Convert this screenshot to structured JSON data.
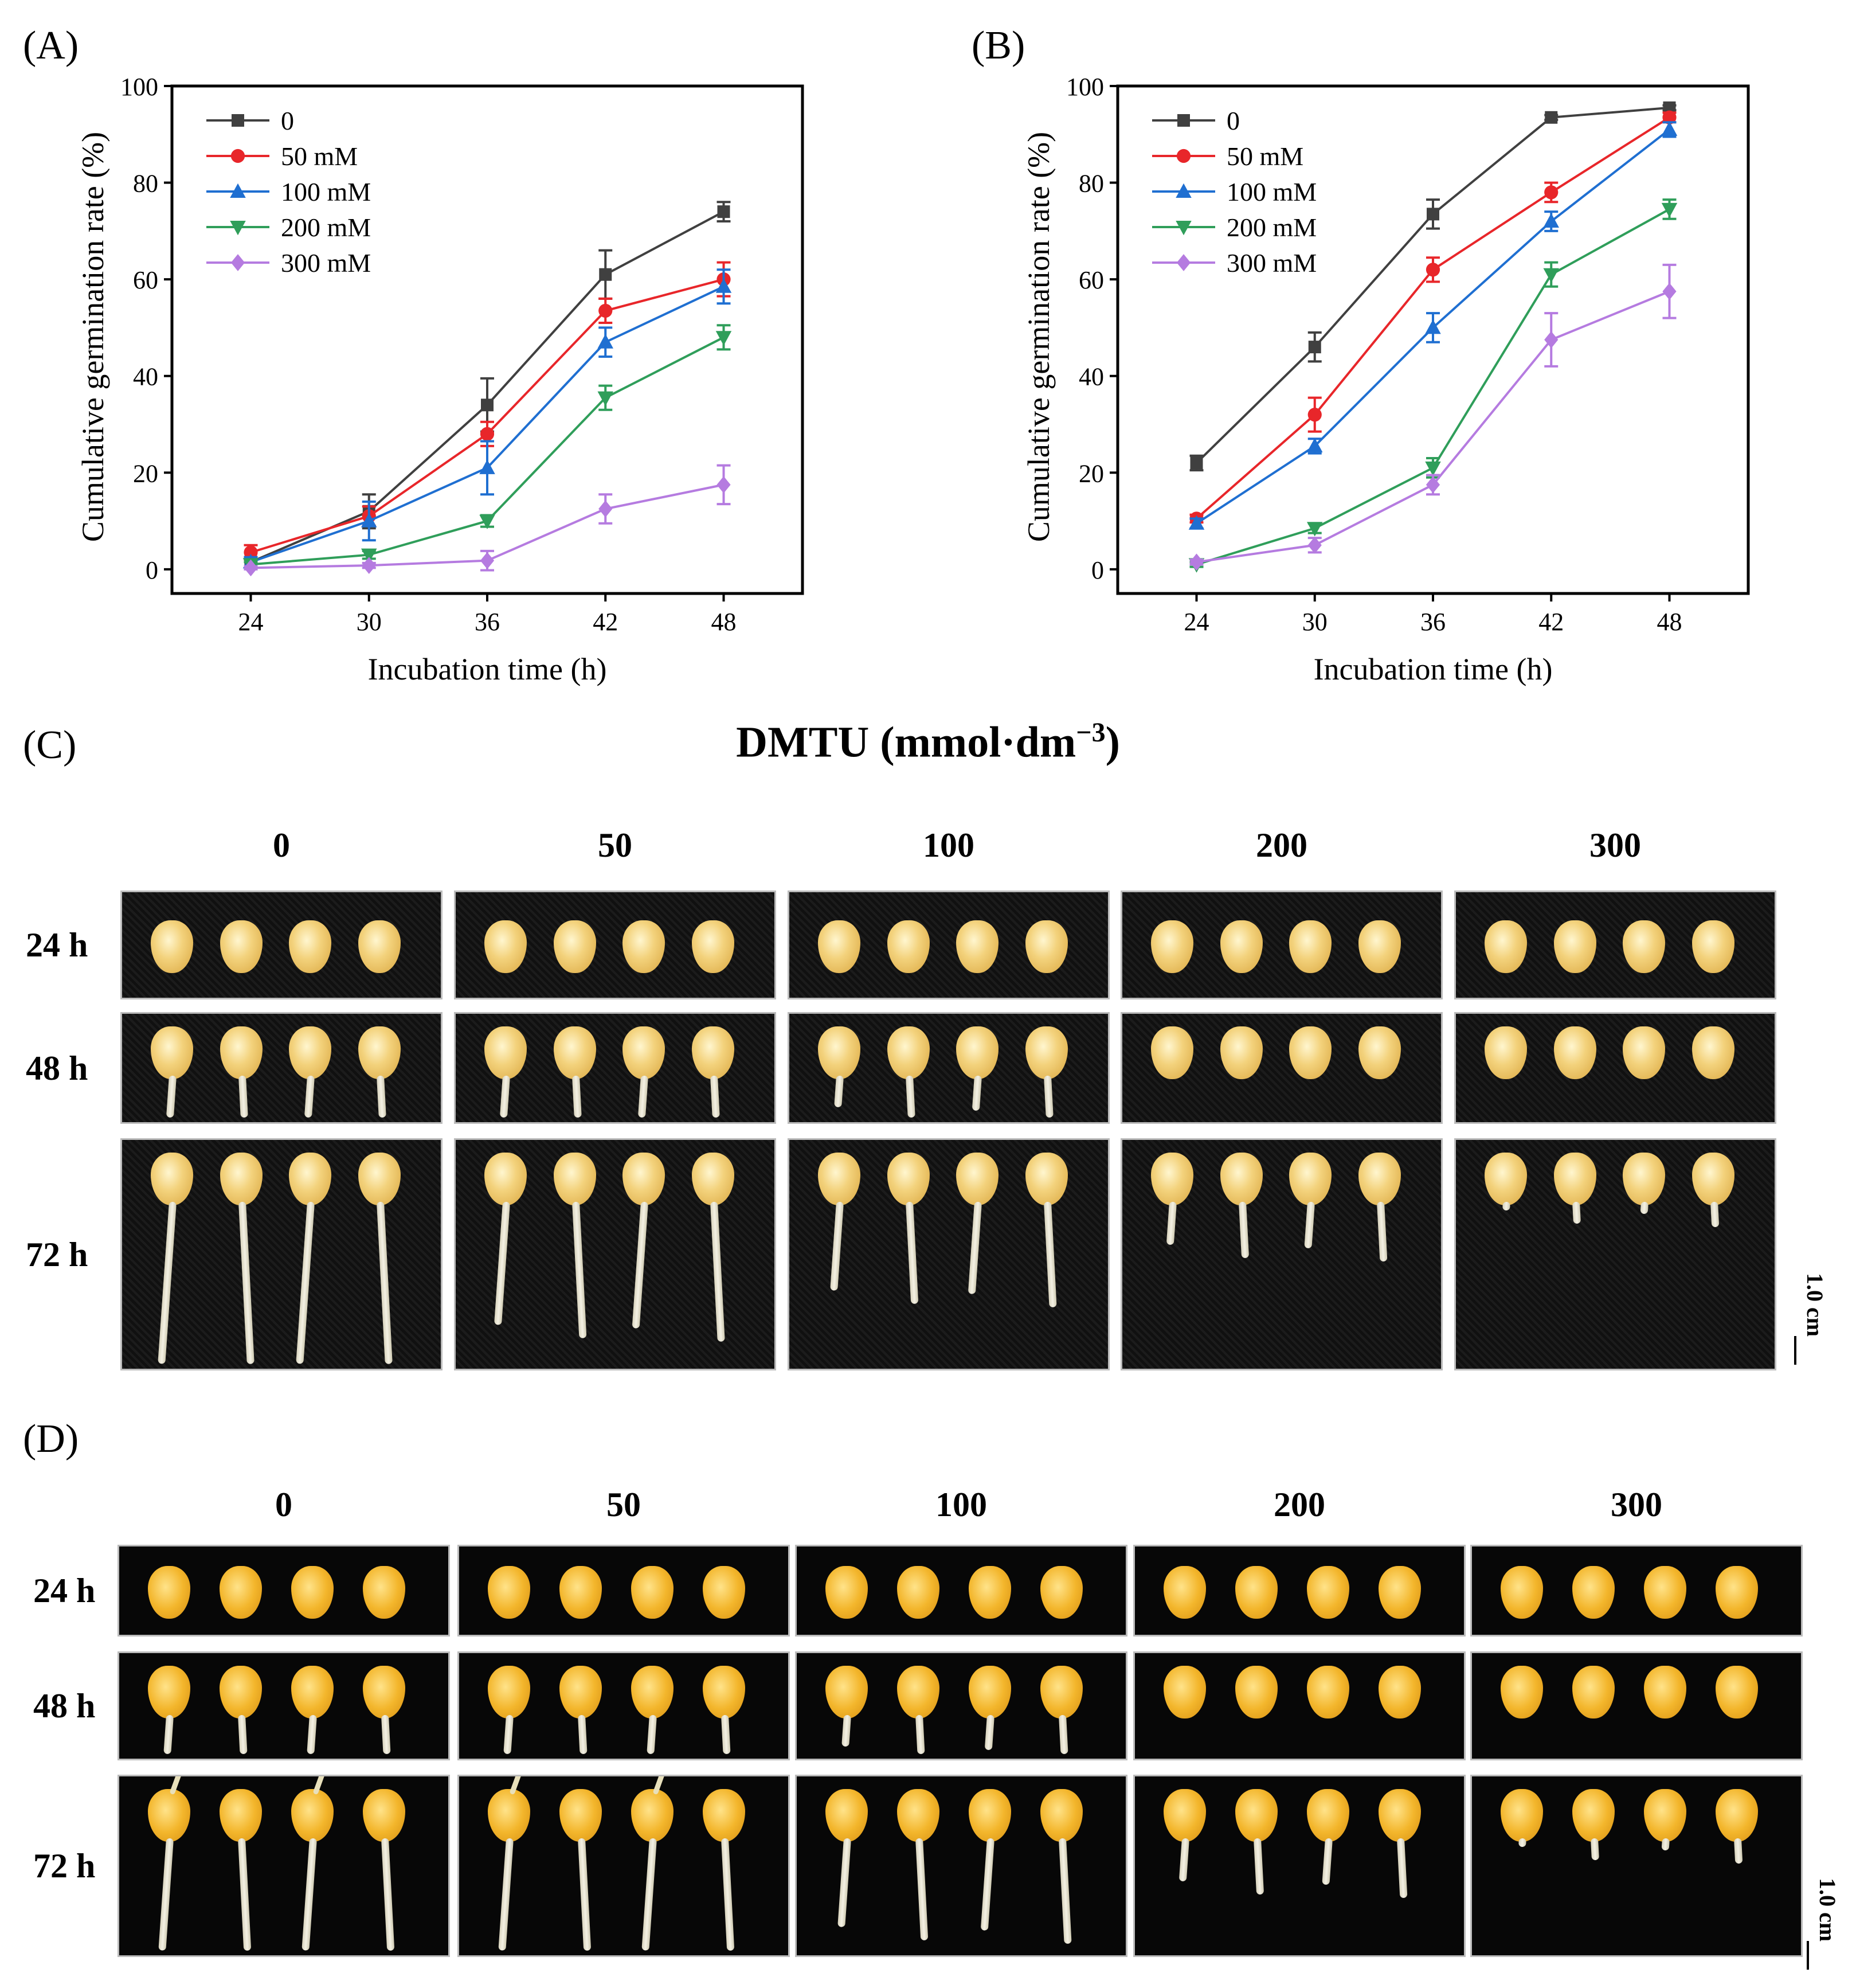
{
  "panels": {
    "a": "(A)",
    "b": "(B)",
    "c": "(C)",
    "d": "(D)"
  },
  "chart_data": [
    {
      "type": "line",
      "panel": "(A)",
      "xlabel": "Incubation time (h)",
      "ylabel": "Cumulative germination rate (%)",
      "x": [
        24,
        30,
        36,
        42,
        48
      ],
      "xticks": [
        "24",
        "30",
        "36",
        "42",
        "48"
      ],
      "yticks": [
        "0",
        "20",
        "40",
        "60",
        "80",
        "100"
      ],
      "xlim": [
        20,
        52
      ],
      "ylim": [
        -5,
        100
      ],
      "legend_position": "top-left",
      "series": [
        {
          "name": "0",
          "color": "#404040",
          "marker": "square",
          "values": [
            1.5,
            12,
            34,
            61,
            74
          ],
          "errors": [
            1,
            3.5,
            5.5,
            5,
            2
          ]
        },
        {
          "name": "50 mM",
          "color": "#e8262a",
          "marker": "circle",
          "values": [
            3.5,
            11,
            28,
            53.5,
            60
          ],
          "errors": [
            1.5,
            2,
            2.5,
            2.5,
            3.5
          ]
        },
        {
          "name": "100 mM",
          "color": "#1f6fd1",
          "marker": "triangle-up",
          "values": [
            1.5,
            10,
            21,
            47,
            58.5
          ],
          "errors": [
            1,
            4,
            5.5,
            3,
            3.5
          ]
        },
        {
          "name": "200 mM",
          "color": "#2f9e5a",
          "marker": "triangle-down",
          "values": [
            1,
            3,
            10,
            35.5,
            48
          ],
          "errors": [
            0.5,
            0.8,
            1.2,
            2.5,
            2.5
          ]
        },
        {
          "name": "300 mM",
          "color": "#b57be0",
          "marker": "diamond",
          "values": [
            0.3,
            0.8,
            1.8,
            12.5,
            17.5
          ],
          "errors": [
            0.3,
            0.5,
            2,
            3,
            4
          ]
        }
      ]
    },
    {
      "type": "line",
      "panel": "(B)",
      "xlabel": "Incubation time (h)",
      "ylabel": "Cumulative germination rate (%)",
      "x": [
        24,
        30,
        36,
        42,
        48
      ],
      "xticks": [
        "24",
        "30",
        "36",
        "42",
        "48"
      ],
      "yticks": [
        "0",
        "20",
        "40",
        "60",
        "80",
        "100"
      ],
      "xlim": [
        20,
        52
      ],
      "ylim": [
        -5,
        100
      ],
      "legend_position": "top-left",
      "series": [
        {
          "name": "0",
          "color": "#404040",
          "marker": "square",
          "values": [
            22,
            46,
            73.5,
            93.5,
            95.5
          ],
          "errors": [
            1.5,
            3,
            3,
            0.5,
            0.5
          ]
        },
        {
          "name": "50 mM",
          "color": "#e8262a",
          "marker": "circle",
          "values": [
            10.5,
            32,
            62,
            78,
            93.5
          ],
          "errors": [
            0.8,
            3.5,
            2.5,
            2,
            1
          ]
        },
        {
          "name": "100 mM",
          "color": "#1f6fd1",
          "marker": "triangle-up",
          "values": [
            9.5,
            25.5,
            50,
            72,
            91
          ],
          "errors": [
            1,
            1.5,
            3,
            2,
            1.5
          ]
        },
        {
          "name": "200 mM",
          "color": "#2f9e5a",
          "marker": "triangle-down",
          "values": [
            1,
            8.5,
            21,
            61,
            74.5
          ],
          "errors": [
            0.5,
            1,
            2,
            2.5,
            2
          ]
        },
        {
          "name": "300 mM",
          "color": "#b57be0",
          "marker": "diamond",
          "values": [
            1.5,
            5,
            17.5,
            47.5,
            57.5
          ],
          "errors": [
            0.5,
            1.5,
            2,
            5.5,
            5.5
          ]
        }
      ]
    }
  ],
  "photo_c": {
    "title_main": "DMTU (mmol·dm",
    "title_sup": "−3",
    "title_end": ")",
    "columns": [
      "0",
      "50",
      "100",
      "200",
      "300"
    ],
    "rows": [
      "24 h",
      "48 h",
      "72 h"
    ],
    "scale": "1.0 cm"
  },
  "photo_d": {
    "columns": [
      "0",
      "50",
      "100",
      "200",
      "300"
    ],
    "rows": [
      "24 h",
      "48 h",
      "72 h"
    ],
    "scale": "1.0 cm"
  }
}
